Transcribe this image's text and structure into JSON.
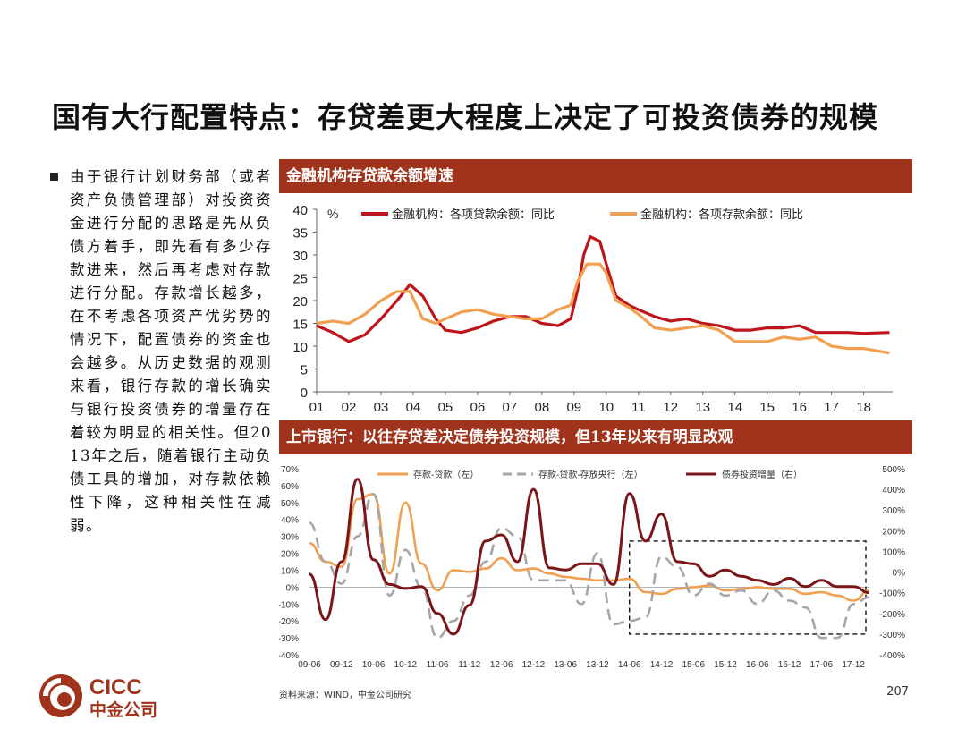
{
  "title": "国有大行配置特点：存贷差更大程度上决定了可投资债券的规模",
  "bullet_text": "由于银行计划财务部（或者资产负债管理部）对投资资金进行分配的思路是先从负债方着手，即先看有多少存款进来，然后再考虑对存款进行分配。存款增长越多，在不考虑各项资产优劣势的情况下，配置债券的资金也会越多。从历史数据的观测来看，银行存款的增长确实与银行投资债券的增量存在着较为明显的相关性。但2013年之后，随着银行主动负债工具的增加，对存款依赖性下降，这种相关性在减弱。",
  "banner1": "金融机构存贷款余额增速",
  "banner2": "上市银行：以往存贷差决定债券投资规模，但13年以来有明显改观",
  "source": "资料来源：WIND，中金公司研究",
  "page_number": "207",
  "logo": {
    "text_en": "CICC",
    "text_cn": "中金公司",
    "color": "#A0331B"
  },
  "colors": {
    "banner": "#A0331B",
    "loan": "#C0141B",
    "deposit": "#F0A050",
    "gray": "#A6A6A6",
    "bond": "#7A1518"
  },
  "chart_data": [
    {
      "type": "line",
      "unit_label": "%",
      "ylim": [
        0,
        40
      ],
      "yticks": [
        0,
        5,
        10,
        15,
        20,
        25,
        30,
        35,
        40
      ],
      "xlim": [
        2001,
        2018.9
      ],
      "xtick_labels": [
        "01",
        "02",
        "03",
        "04",
        "05",
        "06",
        "07",
        "08",
        "09",
        "10",
        "11",
        "12",
        "13",
        "14",
        "15",
        "16",
        "17",
        "18"
      ],
      "legend_position": "top",
      "series": [
        {
          "name": "金融机构：各项贷款余额：同比",
          "color": "#C0141B",
          "points": [
            [
              2001,
              14.5
            ],
            [
              2001.5,
              13
            ],
            [
              2002,
              11
            ],
            [
              2002.5,
              12.5
            ],
            [
              2003,
              16
            ],
            [
              2003.5,
              20
            ],
            [
              2003.9,
              23.5
            ],
            [
              2004.3,
              21
            ],
            [
              2004.7,
              16
            ],
            [
              2005,
              13.5
            ],
            [
              2005.5,
              13
            ],
            [
              2006,
              14
            ],
            [
              2006.5,
              15.5
            ],
            [
              2007,
              16.5
            ],
            [
              2007.5,
              16.5
            ],
            [
              2008,
              15
            ],
            [
              2008.5,
              14.5
            ],
            [
              2008.9,
              16
            ],
            [
              2009.1,
              22
            ],
            [
              2009.3,
              30
            ],
            [
              2009.5,
              34
            ],
            [
              2009.8,
              33
            ],
            [
              2010,
              28
            ],
            [
              2010.3,
              21
            ],
            [
              2010.7,
              19
            ],
            [
              2011,
              18
            ],
            [
              2011.5,
              16.5
            ],
            [
              2012,
              15.5
            ],
            [
              2012.5,
              16
            ],
            [
              2013,
              15
            ],
            [
              2013.5,
              14.5
            ],
            [
              2014,
              13.5
            ],
            [
              2014.5,
              13.5
            ],
            [
              2015,
              14
            ],
            [
              2015.5,
              14
            ],
            [
              2016,
              14.5
            ],
            [
              2016.5,
              13
            ],
            [
              2017,
              13
            ],
            [
              2017.5,
              13
            ],
            [
              2018,
              12.8
            ],
            [
              2018.8,
              13
            ]
          ]
        },
        {
          "name": "金融机构：各项存款余额：同比",
          "color": "#F0A050",
          "points": [
            [
              2001,
              15
            ],
            [
              2001.5,
              15.5
            ],
            [
              2002,
              15
            ],
            [
              2002.5,
              17
            ],
            [
              2003,
              20
            ],
            [
              2003.5,
              22
            ],
            [
              2003.9,
              22
            ],
            [
              2004.3,
              16
            ],
            [
              2004.7,
              15
            ],
            [
              2005,
              16
            ],
            [
              2005.5,
              17.5
            ],
            [
              2006,
              18
            ],
            [
              2006.5,
              17
            ],
            [
              2007,
              16.5
            ],
            [
              2007.5,
              16
            ],
            [
              2008,
              16
            ],
            [
              2008.5,
              18
            ],
            [
              2008.9,
              19
            ],
            [
              2009.1,
              24
            ],
            [
              2009.4,
              28
            ],
            [
              2009.8,
              28
            ],
            [
              2010,
              26
            ],
            [
              2010.3,
              20
            ],
            [
              2010.7,
              18.5
            ],
            [
              2011,
              17
            ],
            [
              2011.5,
              14
            ],
            [
              2012,
              13.5
            ],
            [
              2012.5,
              14
            ],
            [
              2013,
              14.5
            ],
            [
              2013.5,
              13.5
            ],
            [
              2014,
              11
            ],
            [
              2014.5,
              11
            ],
            [
              2015,
              11
            ],
            [
              2015.5,
              12
            ],
            [
              2016,
              11.5
            ],
            [
              2016.5,
              12
            ],
            [
              2017,
              10
            ],
            [
              2017.5,
              9.5
            ],
            [
              2018,
              9.5
            ],
            [
              2018.8,
              8.5
            ]
          ]
        }
      ]
    },
    {
      "type": "line",
      "y_left_lim": [
        -40,
        70
      ],
      "y_left_ticks": [
        "70%",
        "60%",
        "50%",
        "40%",
        "30%",
        "20%",
        "10%",
        "0%",
        "-10%",
        "-20%",
        "-30%",
        "-40%"
      ],
      "y_right_lim": [
        -400,
        500
      ],
      "y_right_ticks": [
        "500%",
        "400%",
        "300%",
        "200%",
        "100%",
        "0%",
        "-100%",
        "-200%",
        "-300%",
        "-400%"
      ],
      "x_labels": [
        "09-06",
        "09-12",
        "10-06",
        "10-12",
        "11-06",
        "11-12",
        "12-06",
        "12-12",
        "13-06",
        "13-12",
        "14-06",
        "14-12",
        "15-06",
        "15-12",
        "16-06",
        "16-12",
        "17-06",
        "17-12"
      ],
      "legend_position": "top",
      "highlight_box": {
        "x_from": "14-06",
        "x_to": "17-12+",
        "note": "dashed box"
      },
      "series": [
        {
          "name": "存款-贷款（左）",
          "axis": "left",
          "color": "#F0A050",
          "values": [
            26,
            15,
            12,
            52,
            55,
            8,
            50,
            14,
            -2,
            10,
            9,
            11,
            17,
            10,
            11,
            8,
            6,
            5,
            4,
            4,
            5,
            -3,
            -4,
            -1,
            0,
            1,
            -2,
            -1,
            0,
            -1,
            -1,
            -4,
            -3,
            -5,
            -8,
            -2
          ]
        },
        {
          "name": "存款-贷款-存放央行（左）",
          "axis": "left",
          "color": "#A6A6A6",
          "values": [
            38,
            15,
            2,
            30,
            55,
            -5,
            22,
            0,
            -30,
            -20,
            -5,
            15,
            35,
            30,
            4,
            4,
            4,
            -10,
            20,
            -22,
            -20,
            -18,
            18,
            12,
            -5,
            2,
            -5,
            -2,
            -10,
            -2,
            -8,
            -12,
            -30,
            -30,
            -10,
            -6
          ]
        },
        {
          "name": "债券投资增量（右）",
          "axis": "right",
          "color": "#7A1518",
          "values": [
            -10,
            -230,
            50,
            450,
            60,
            -60,
            -80,
            -70,
            -200,
            -300,
            -160,
            150,
            180,
            50,
            400,
            20,
            10,
            40,
            40,
            -60,
            380,
            150,
            280,
            50,
            40,
            -20,
            10,
            -20,
            -40,
            -60,
            -30,
            -70,
            -40,
            -70,
            -70,
            -100
          ]
        }
      ]
    }
  ]
}
